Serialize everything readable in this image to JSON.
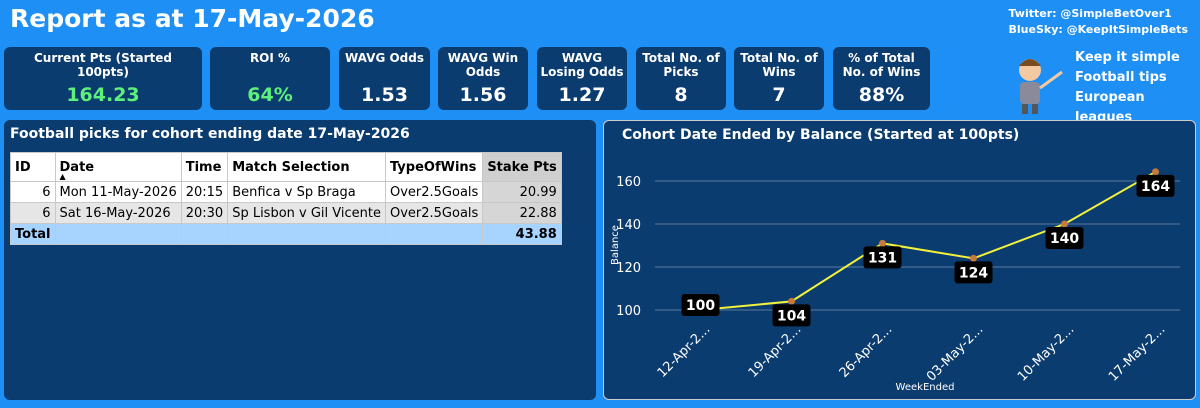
{
  "header": {
    "title": "Report as at 17-May-2026",
    "twitter": "Twitter: @SimpleBetOver1",
    "bluesky": "BlueSky: @KeepItSimpleBets"
  },
  "cards": [
    {
      "label": "Current Pts (Started 100pts)",
      "value": "164.23"
    },
    {
      "label": "ROI %",
      "value": "64%"
    },
    {
      "label": "WAVG Odds",
      "value": "1.53"
    },
    {
      "label": "WAVG Win Odds",
      "value": "1.56"
    },
    {
      "label": "WAVG Losing Odds",
      "value": "1.27"
    },
    {
      "label": "Total No. of Picks",
      "value": "8"
    },
    {
      "label": "Total No. of Wins",
      "value": "7"
    },
    {
      "label": "% of Total No. of Wins",
      "value": "88%"
    }
  ],
  "tagline": [
    "Keep it simple",
    "Football tips",
    "European leagues"
  ],
  "table": {
    "title": "Football picks for cohort ending date 17-May-2026",
    "columns": [
      "ID",
      "Date",
      "Time",
      "Match Selection",
      "TypeOfWins",
      "Stake Pts"
    ],
    "rows": [
      [
        "6",
        "Mon 11-May-2026",
        "20:15",
        "Benfica v Sp Braga",
        "Over2.5Goals",
        "20.99"
      ],
      [
        "6",
        "Sat 16-May-2026",
        "20:30",
        "Sp Lisbon v Gil Vicente",
        "Over2.5Goals",
        "22.88"
      ]
    ],
    "total": {
      "label": "Total",
      "value": "43.88"
    }
  },
  "chart_data": {
    "type": "line",
    "title": "Cohort Date Ended by Balance (Started at 100pts)",
    "x_label": "WeekEnded",
    "y_label": "Balance",
    "categories": [
      "12-Apr-2...",
      "19-Apr-2...",
      "26-Apr-2...",
      "03-May-2...",
      "10-May-2...",
      "17-May-2..."
    ],
    "series": [
      {
        "name": "Balance",
        "color": "#f2f23c",
        "marker_color": "#c87a3a",
        "values": [
          100,
          104,
          131,
          124,
          140,
          164.23
        ],
        "value_labels": [
          "100",
          "104",
          "131",
          "124",
          "140",
          "164"
        ]
      }
    ],
    "ylim": [
      90,
      170
    ],
    "yticks": [
      100,
      120,
      140,
      160
    ],
    "grid": true
  }
}
